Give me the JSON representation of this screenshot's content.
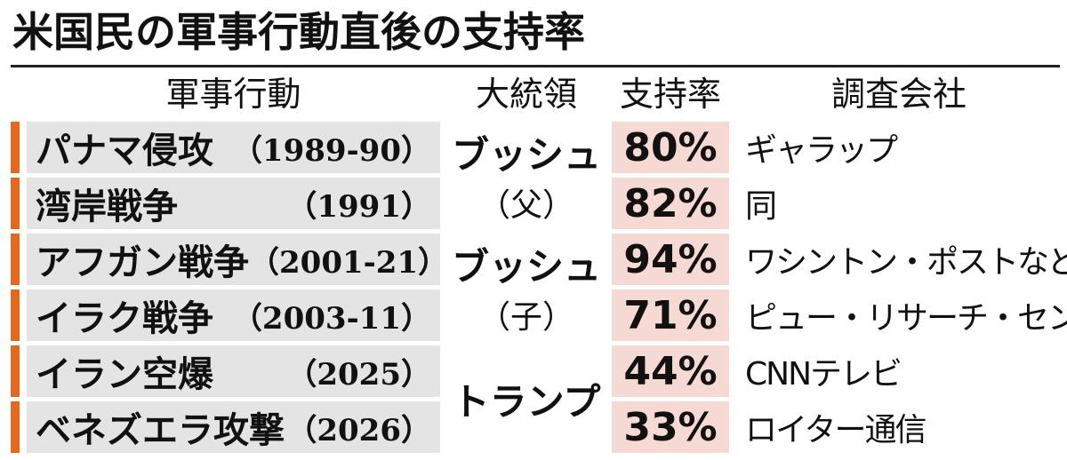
{
  "title": "米国民の軍事行動直後の支持率",
  "header": [
    "軍事行動",
    "大統領",
    "支持率",
    "調査会社"
  ],
  "rows": [
    {
      "action": "パナマ侵攻",
      "period": "（1989-90）",
      "approval": "80%",
      "pollster": "ギャラップ"
    },
    {
      "action": "湾岸戦争",
      "period": "（1991）",
      "approval": "82%",
      "pollster": "同"
    },
    {
      "action": "アフガン戦争",
      "period": "（2001-21）",
      "approval": "94%",
      "pollster": "ワシントン・ポストなど"
    },
    {
      "action": "イラク戦争",
      "period": "（2003-11）",
      "approval": "71%",
      "pollster": "ピュー・リサーチ・センター"
    },
    {
      "action": "イラン空爆",
      "period": "（2025）",
      "approval": "44%",
      "pollster": "CNNテレビ"
    },
    {
      "action": "ベネズエラ攻撃",
      "period": "（2026）",
      "approval": "33%",
      "pollster": "ロイター通信"
    }
  ],
  "presidents": [
    {
      "name": "ブッシュ",
      "note": "（父）",
      "rows": 2
    },
    {
      "name": "ブッシュ",
      "note": "（子）",
      "rows": 2
    },
    {
      "name": "トランプ",
      "rows": 2
    }
  ]
}
